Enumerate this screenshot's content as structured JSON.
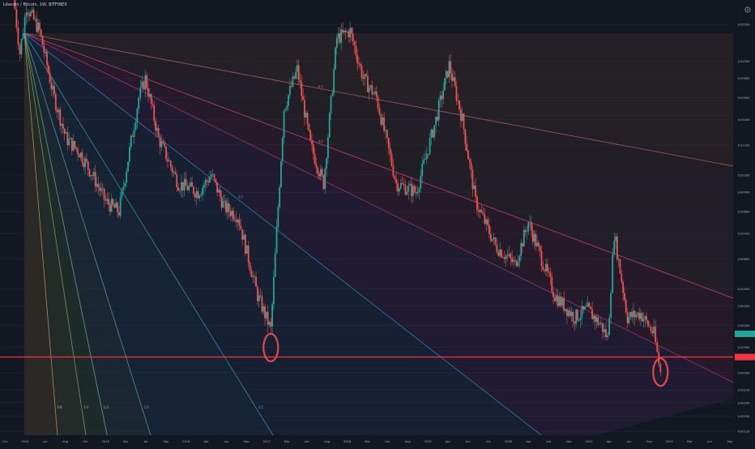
{
  "header": {
    "symbol_title": "Litecoin / Bitcoin, 1W, BITFINEX"
  },
  "colors": {
    "background": "#131722",
    "up_candle": "#26a69a",
    "down_candle": "#ef5350",
    "horizontal_line": "#f23645",
    "circle": "#e04a4a"
  },
  "icons": {
    "settings": "gear-icon"
  },
  "chart_data": {
    "type": "candlestick",
    "title": "Litecoin / Bitcoin, 1W, BITFINEX",
    "y_scale": "log",
    "grid": true,
    "y_tick_labels": [
      "0.04000",
      "0.03500",
      "0.03000",
      "0.02500",
      "0.02000",
      "0.01800",
      "0.01600",
      "0.01400",
      "0.01200",
      "0.01000",
      "0.00900",
      "0.00800",
      "0.00700",
      "0.00600",
      "0.00500",
      "0.00450",
      "0.00400",
      "0.00350",
      "0.00300",
      "0.00270",
      "0.00250",
      "0.00230",
      "0.00210"
    ],
    "x_tick_labels": [
      "Oct",
      "2014",
      "Jul",
      "Aug",
      "Oct",
      "2015",
      "Apr",
      "Jul",
      "Sep",
      "2016",
      "Apr",
      "Jun",
      "Sep",
      "2017",
      "Mar",
      "Jun",
      "Aug",
      "2018",
      "Mar",
      "Jun",
      "Aug",
      "2019",
      "Apr",
      "Jun",
      "Oct",
      "2020",
      "Apr",
      "Jun",
      "Sep",
      "2021",
      "Apr",
      "Jun",
      "Sep",
      "2022",
      "Mar",
      "Jun",
      "Sep"
    ],
    "price_path": [
      {
        "x": "2013-11",
        "close": 0.03
      },
      {
        "x": "2013-12",
        "close": 0.021
      },
      {
        "x": "2014-01",
        "close": 0.028
      },
      {
        "x": "2014-03",
        "close": 0.024
      },
      {
        "x": "2014-05",
        "close": 0.0165
      },
      {
        "x": "2014-07",
        "close": 0.0125
      },
      {
        "x": "2014-09",
        "close": 0.0115
      },
      {
        "x": "2014-11",
        "close": 0.01
      },
      {
        "x": "2015-01",
        "close": 0.0085
      },
      {
        "x": "2015-03",
        "close": 0.008
      },
      {
        "x": "2015-06",
        "close": 0.016
      },
      {
        "x": "2015-07",
        "close": 0.018
      },
      {
        "x": "2015-09",
        "close": 0.0125
      },
      {
        "x": "2015-12",
        "close": 0.0095
      },
      {
        "x": "2016-03",
        "close": 0.009
      },
      {
        "x": "2016-05",
        "close": 0.01
      },
      {
        "x": "2016-07",
        "close": 0.0082
      },
      {
        "x": "2016-09",
        "close": 0.0078
      },
      {
        "x": "2016-12",
        "close": 0.0048
      },
      {
        "x": "2017-02",
        "close": 0.0039
      },
      {
        "x": "2017-04",
        "close": 0.015
      },
      {
        "x": "2017-06",
        "close": 0.019
      },
      {
        "x": "2017-08",
        "close": 0.012
      },
      {
        "x": "2017-10",
        "close": 0.0095
      },
      {
        "x": "2017-12",
        "close": 0.023
      },
      {
        "x": "2018-02",
        "close": 0.024
      },
      {
        "x": "2018-04",
        "close": 0.018
      },
      {
        "x": "2018-06",
        "close": 0.016
      },
      {
        "x": "2018-09",
        "close": 0.0095
      },
      {
        "x": "2018-12",
        "close": 0.009
      },
      {
        "x": "2019-03",
        "close": 0.014
      },
      {
        "x": "2019-05",
        "close": 0.0195
      },
      {
        "x": "2019-07",
        "close": 0.014
      },
      {
        "x": "2019-09",
        "close": 0.0085
      },
      {
        "x": "2019-12",
        "close": 0.0065
      },
      {
        "x": "2020-03",
        "close": 0.0058
      },
      {
        "x": "2020-05",
        "close": 0.0075
      },
      {
        "x": "2020-07",
        "close": 0.006
      },
      {
        "x": "2020-09",
        "close": 0.0048
      },
      {
        "x": "2020-12",
        "close": 0.0042
      },
      {
        "x": "2021-02",
        "close": 0.0044
      },
      {
        "x": "2021-04",
        "close": 0.004
      },
      {
        "x": "2021-05",
        "close": 0.0037
      },
      {
        "x": "2021-06",
        "close": 0.007
      },
      {
        "x": "2021-08",
        "close": 0.0042
      },
      {
        "x": "2021-10",
        "close": 0.0043
      },
      {
        "x": "2021-12",
        "close": 0.0038
      },
      {
        "x": "2022-01",
        "close": 0.003
      }
    ],
    "fan_lines": [
      {
        "label": "1/8"
      },
      {
        "label": "1/4"
      },
      {
        "label": "1/3"
      },
      {
        "label": "1/2"
      },
      {
        "label": "1/1"
      },
      {
        "label": "2/1"
      },
      {
        "label": "3/1"
      },
      {
        "label": "4/1"
      },
      {
        "label": "8/1"
      }
    ],
    "horizontal_level": 0.0033,
    "circled_lows": [
      "2017-02",
      "2022-01"
    ]
  }
}
